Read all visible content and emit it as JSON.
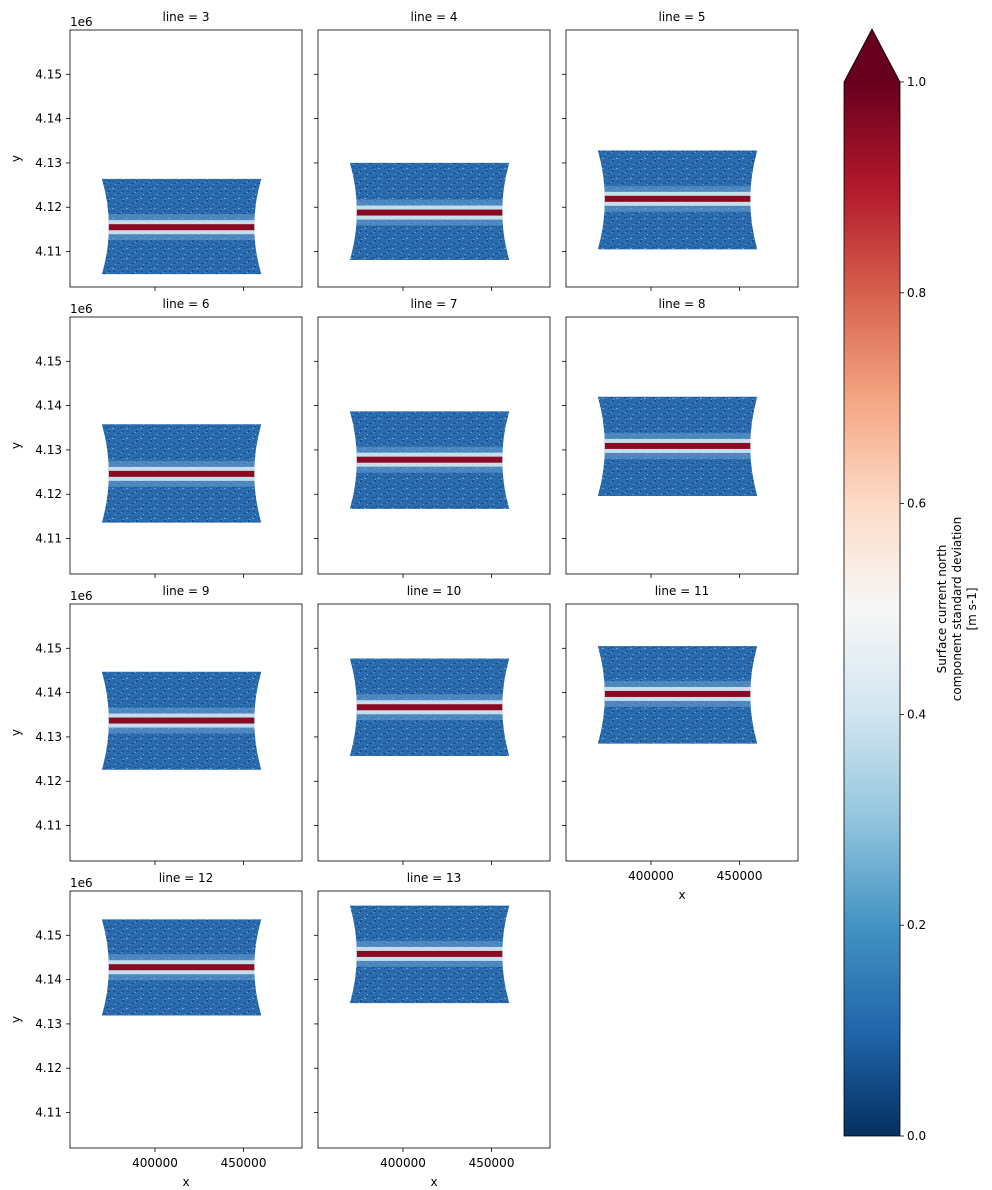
{
  "chart_data": {
    "type": "heatmap",
    "layout": "facet-grid",
    "facet_label_template": "line = {v}",
    "facets": [
      {
        "line": 3,
        "title": "line = 3",
        "y_top": 4126400,
        "y_bottom": 4104900,
        "stripe_y": 4115500
      },
      {
        "line": 4,
        "title": "line = 4",
        "y_top": 4130000,
        "y_bottom": 4108100,
        "stripe_y": 4118800
      },
      {
        "line": 5,
        "title": "line = 5",
        "y_top": 4132800,
        "y_bottom": 4110500,
        "stripe_y": 4121900
      },
      {
        "line": 6,
        "title": "line = 6",
        "y_top": 4135800,
        "y_bottom": 4113600,
        "stripe_y": 4124600
      },
      {
        "line": 7,
        "title": "line = 7",
        "y_top": 4138700,
        "y_bottom": 4116700,
        "stripe_y": 4127800
      },
      {
        "line": 8,
        "title": "line = 8",
        "y_top": 4142000,
        "y_bottom": 4119600,
        "stripe_y": 4130900
      },
      {
        "line": 9,
        "title": "line = 9",
        "y_top": 4144700,
        "y_bottom": 4122600,
        "stripe_y": 4133700
      },
      {
        "line": 10,
        "title": "line = 10",
        "y_top": 4147700,
        "y_bottom": 4125700,
        "stripe_y": 4136700
      },
      {
        "line": 11,
        "title": "line = 11",
        "y_top": 4150500,
        "y_bottom": 4128500,
        "stripe_y": 4139700
      },
      {
        "line": 12,
        "title": "line = 12",
        "y_top": 4153600,
        "y_bottom": 4131900,
        "stripe_y": 4142800
      },
      {
        "line": 13,
        "title": "line = 13",
        "y_top": 4156700,
        "y_bottom": 4134700,
        "stripe_y": 4145800
      }
    ],
    "x_band": [
      370000,
      460000
    ],
    "xlim": [
      352000,
      483000
    ],
    "ylim": [
      4102000,
      4160000
    ],
    "x_ticks": [
      400000,
      450000
    ],
    "x_tick_labels": [
      "400000",
      "450000"
    ],
    "y_ticks": [
      4110000,
      4120000,
      4130000,
      4140000,
      4150000
    ],
    "y_tick_labels": [
      "4.11",
      "4.12",
      "4.13",
      "4.14",
      "4.15"
    ],
    "y_offset_label": "1e6",
    "xlabel": "x",
    "ylabel": "y",
    "colorbar": {
      "label_lines": [
        "Surface current north",
        "component standard deviation",
        "[m s-1]"
      ],
      "min": 0.0,
      "max": 1.0,
      "ticks": [
        0.0,
        0.2,
        0.4,
        0.6,
        0.8,
        1.0
      ],
      "tick_labels": [
        "0.0",
        "0.2",
        "0.4",
        "0.6",
        "0.8",
        "1.0"
      ],
      "extend": "max",
      "colormap": "RdBu_r",
      "stops": [
        "#053061",
        "#2166ac",
        "#4393c3",
        "#92c5de",
        "#d1e5f0",
        "#f7f7f7",
        "#fddbc7",
        "#f4a582",
        "#d6604d",
        "#b2182b",
        "#67001f"
      ]
    },
    "band_colors": {
      "base": "#2b6cae",
      "dark": "#1a4f8e",
      "light": "#6aa3cf",
      "halo": "#c6ddec",
      "peak": "#8a0a22"
    }
  }
}
